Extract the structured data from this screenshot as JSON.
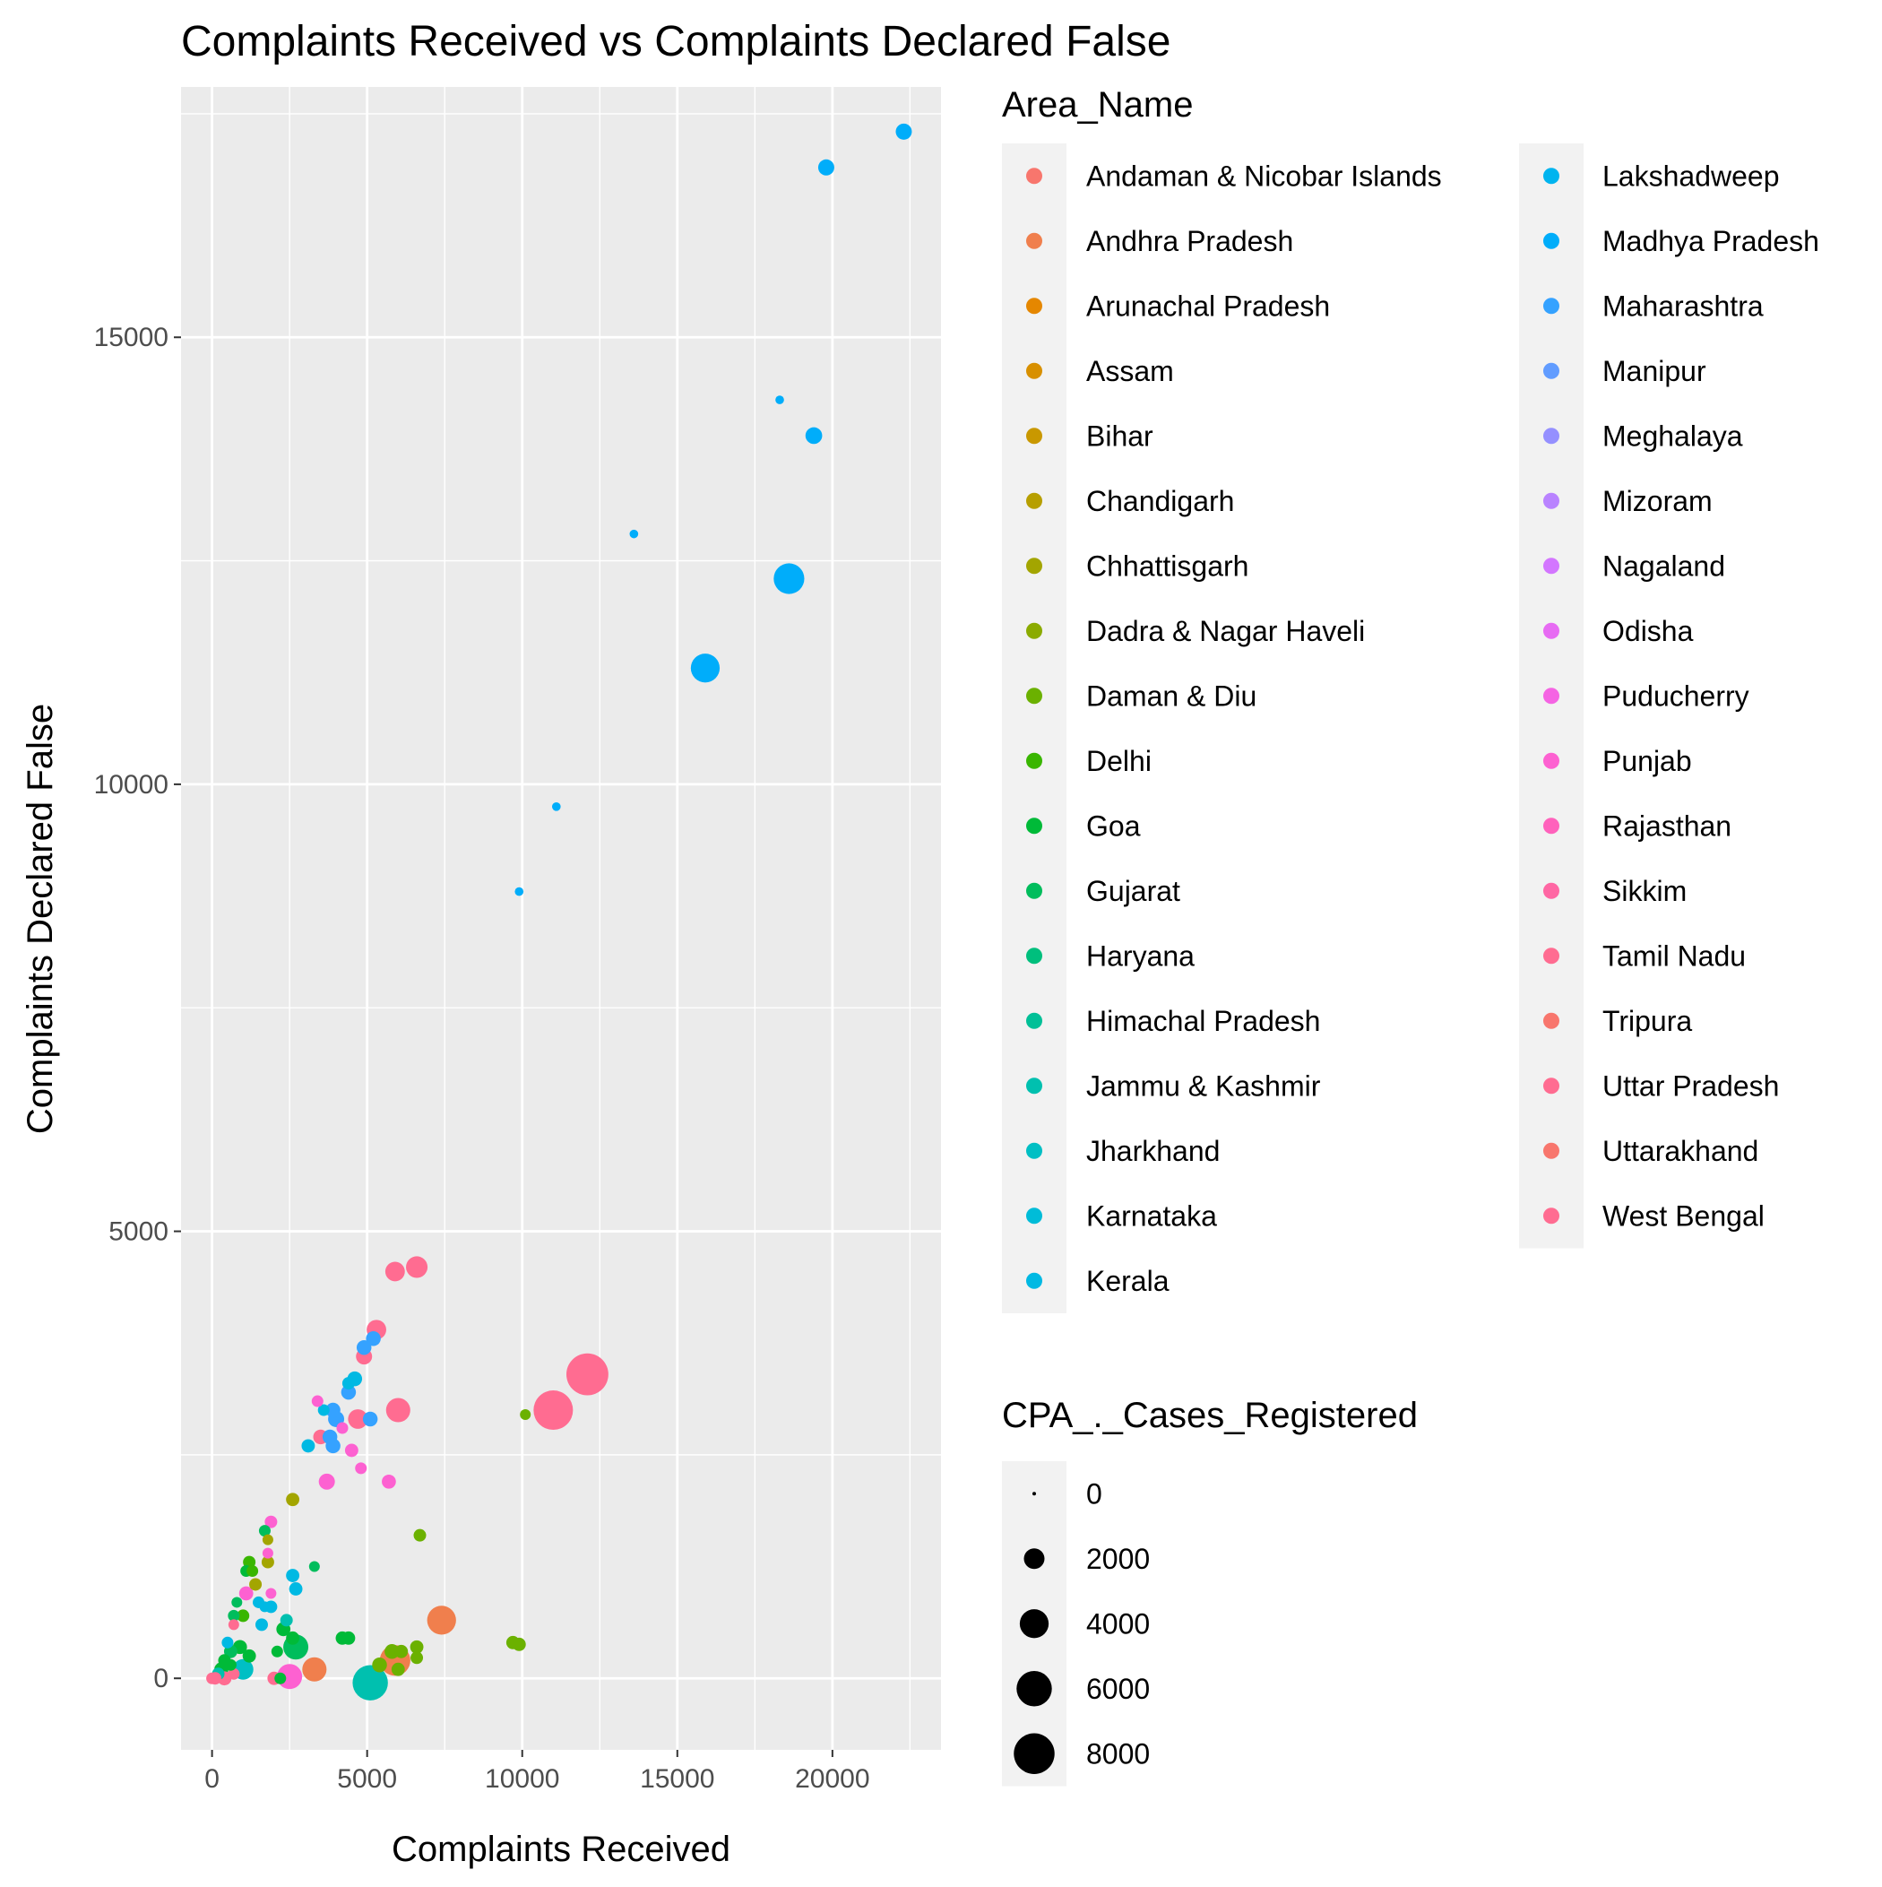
{
  "chart_data": {
    "type": "scatter",
    "title": "Complaints Received vs Complaints Declared False",
    "xlabel": "Complaints Received",
    "ylabel": "Complaints Declared False",
    "xlim": [
      -1000,
      23500
    ],
    "ylim": [
      -800,
      17800
    ],
    "x_ticks": [
      0,
      5000,
      10000,
      15000,
      20000
    ],
    "y_ticks": [
      0,
      5000,
      10000,
      15000
    ],
    "grid": true,
    "legend_position": "right",
    "color_legend_title": "Area_Name",
    "size_legend_title": "CPA_._Cases_Registered",
    "size_legend_values": [
      0,
      2000,
      4000,
      6000,
      8000
    ],
    "areas": [
      {
        "name": "Andaman & Nicobar Islands",
        "color": "#F8766D"
      },
      {
        "name": "Andhra Pradesh",
        "color": "#F07F4D"
      },
      {
        "name": "Arunachal Pradesh",
        "color": "#E58700"
      },
      {
        "name": "Assam",
        "color": "#D89000"
      },
      {
        "name": "Bihar",
        "color": "#C99800"
      },
      {
        "name": "Chandigarh",
        "color": "#B79F00"
      },
      {
        "name": "Chhattisgarh",
        "color": "#A3A500"
      },
      {
        "name": "Dadra & Nagar Haveli",
        "color": "#8BAB00"
      },
      {
        "name": "Daman & Diu",
        "color": "#6BB100"
      },
      {
        "name": "Delhi",
        "color": "#39B600"
      },
      {
        "name": "Goa",
        "color": "#00BA38"
      },
      {
        "name": "Gujarat",
        "color": "#00BD5C"
      },
      {
        "name": "Haryana",
        "color": "#00BF7D"
      },
      {
        "name": "Himachal Pradesh",
        "color": "#00C097"
      },
      {
        "name": "Jammu & Kashmir",
        "color": "#00C0AF"
      },
      {
        "name": "Jharkhand",
        "color": "#00BFC4"
      },
      {
        "name": "Karnataka",
        "color": "#00BCD8"
      },
      {
        "name": "Kerala",
        "color": "#00B9E3"
      },
      {
        "name": "Lakshadweep",
        "color": "#00B4EF"
      },
      {
        "name": "Madhya Pradesh",
        "color": "#00ADFA"
      },
      {
        "name": "Maharashtra",
        "color": "#35A2FF"
      },
      {
        "name": "Manipur",
        "color": "#619CFF"
      },
      {
        "name": "Meghalaya",
        "color": "#9590FF"
      },
      {
        "name": "Mizoram",
        "color": "#B983FF"
      },
      {
        "name": "Nagaland",
        "color": "#D376FF"
      },
      {
        "name": "Odisha",
        "color": "#E76BF3"
      },
      {
        "name": "Puducherry",
        "color": "#F564E3"
      },
      {
        "name": "Punjab",
        "color": "#FD61D1"
      },
      {
        "name": "Rajasthan",
        "color": "#FF62BC"
      },
      {
        "name": "Sikkim",
        "color": "#FF67A4"
      },
      {
        "name": "Tamil Nadu",
        "color": "#FF6C91"
      },
      {
        "name": "Tripura",
        "color": "#F8766D"
      },
      {
        "name": "Uttar Pradesh",
        "color": "#FF6C91"
      },
      {
        "name": "Uttarakhand",
        "color": "#F8766D"
      },
      {
        "name": "West Bengal",
        "color": "#FF6C91"
      }
    ],
    "points": [
      {
        "x": 22300,
        "y": 17300,
        "size": 1200,
        "area": "Madhya Pradesh"
      },
      {
        "x": 19800,
        "y": 16900,
        "size": 1200,
        "area": "Madhya Pradesh"
      },
      {
        "x": 18300,
        "y": 14300,
        "size": 300,
        "area": "Madhya Pradesh"
      },
      {
        "x": 19400,
        "y": 13900,
        "size": 1300,
        "area": "Madhya Pradesh"
      },
      {
        "x": 13600,
        "y": 12800,
        "size": 300,
        "area": "Madhya Pradesh"
      },
      {
        "x": 18600,
        "y": 12300,
        "size": 4500,
        "area": "Madhya Pradesh"
      },
      {
        "x": 15900,
        "y": 11300,
        "size": 4000,
        "area": "Madhya Pradesh"
      },
      {
        "x": 11100,
        "y": 9750,
        "size": 300,
        "area": "Madhya Pradesh"
      },
      {
        "x": 9900,
        "y": 8800,
        "size": 300,
        "area": "Madhya Pradesh"
      },
      {
        "x": 12100,
        "y": 3400,
        "size": 8500,
        "area": "Tamil Nadu"
      },
      {
        "x": 11000,
        "y": 3000,
        "size": 7500,
        "area": "Tamil Nadu"
      },
      {
        "x": 6600,
        "y": 4600,
        "size": 2200,
        "area": "Tamil Nadu"
      },
      {
        "x": 5900,
        "y": 4550,
        "size": 1800,
        "area": "Tamil Nadu"
      },
      {
        "x": 5300,
        "y": 3900,
        "size": 1800,
        "area": "Tamil Nadu"
      },
      {
        "x": 4900,
        "y": 3600,
        "size": 1200,
        "area": "Tamil Nadu"
      },
      {
        "x": 6000,
        "y": 3000,
        "size": 2800,
        "area": "Tamil Nadu"
      },
      {
        "x": 4700,
        "y": 2900,
        "size": 1800,
        "area": "Tamil Nadu"
      },
      {
        "x": 3500,
        "y": 2700,
        "size": 1000,
        "area": "Tamil Nadu"
      },
      {
        "x": 5200,
        "y": 3800,
        "size": 1000,
        "area": "Maharashtra"
      },
      {
        "x": 4900,
        "y": 3700,
        "size": 1000,
        "area": "Maharashtra"
      },
      {
        "x": 4600,
        "y": 3350,
        "size": 1000,
        "area": "Kerala"
      },
      {
        "x": 4400,
        "y": 3300,
        "size": 700,
        "area": "Kerala"
      },
      {
        "x": 4400,
        "y": 3200,
        "size": 1000,
        "area": "Maharashtra"
      },
      {
        "x": 3900,
        "y": 3000,
        "size": 1000,
        "area": "Maharashtra"
      },
      {
        "x": 3600,
        "y": 3000,
        "size": 600,
        "area": "Kerala"
      },
      {
        "x": 4000,
        "y": 2900,
        "size": 1200,
        "area": "Maharashtra"
      },
      {
        "x": 5100,
        "y": 2900,
        "size": 1000,
        "area": "Maharashtra"
      },
      {
        "x": 3800,
        "y": 2700,
        "size": 1000,
        "area": "Maharashtra"
      },
      {
        "x": 3900,
        "y": 2600,
        "size": 1000,
        "area": "Maharashtra"
      },
      {
        "x": 3100,
        "y": 2600,
        "size": 800,
        "area": "Kerala"
      },
      {
        "x": 3400,
        "y": 3100,
        "size": 600,
        "area": "Punjab"
      },
      {
        "x": 4200,
        "y": 2800,
        "size": 600,
        "area": "Punjab"
      },
      {
        "x": 4500,
        "y": 2550,
        "size": 800,
        "area": "Punjab"
      },
      {
        "x": 4800,
        "y": 2350,
        "size": 600,
        "area": "Punjab"
      },
      {
        "x": 3700,
        "y": 2200,
        "size": 1200,
        "area": "Punjab"
      },
      {
        "x": 5700,
        "y": 2200,
        "size": 900,
        "area": "Punjab"
      },
      {
        "x": 10100,
        "y": 2950,
        "size": 500,
        "area": "Daman & Diu"
      },
      {
        "x": 2600,
        "y": 2000,
        "size": 800,
        "area": "Chhattisgarh"
      },
      {
        "x": 6700,
        "y": 1600,
        "size": 700,
        "area": "Daman & Diu"
      },
      {
        "x": 1900,
        "y": 1750,
        "size": 700,
        "area": "Punjab"
      },
      {
        "x": 1700,
        "y": 1650,
        "size": 600,
        "area": "Gujarat"
      },
      {
        "x": 1800,
        "y": 1550,
        "size": 500,
        "area": "Chhattisgarh"
      },
      {
        "x": 1800,
        "y": 1400,
        "size": 500,
        "area": "Punjab"
      },
      {
        "x": 1200,
        "y": 1300,
        "size": 700,
        "area": "Delhi"
      },
      {
        "x": 1800,
        "y": 1300,
        "size": 700,
        "area": "Chhattisgarh"
      },
      {
        "x": 1100,
        "y": 1200,
        "size": 600,
        "area": "Goa"
      },
      {
        "x": 1300,
        "y": 1200,
        "size": 600,
        "area": "Delhi"
      },
      {
        "x": 3300,
        "y": 1250,
        "size": 500,
        "area": "Gujarat"
      },
      {
        "x": 2600,
        "y": 1150,
        "size": 800,
        "area": "Kerala"
      },
      {
        "x": 1400,
        "y": 1050,
        "size": 700,
        "area": "Chhattisgarh"
      },
      {
        "x": 2700,
        "y": 1000,
        "size": 800,
        "area": "Kerala"
      },
      {
        "x": 1100,
        "y": 950,
        "size": 900,
        "area": "Punjab"
      },
      {
        "x": 800,
        "y": 850,
        "size": 500,
        "area": "Gujarat"
      },
      {
        "x": 1900,
        "y": 950,
        "size": 500,
        "area": "Punjab"
      },
      {
        "x": 1500,
        "y": 850,
        "size": 600,
        "area": "Kerala"
      },
      {
        "x": 1900,
        "y": 800,
        "size": 700,
        "area": "Kerala"
      },
      {
        "x": 1700,
        "y": 800,
        "size": 500,
        "area": "Kerala"
      },
      {
        "x": 700,
        "y": 700,
        "size": 600,
        "area": "Gujarat"
      },
      {
        "x": 1000,
        "y": 700,
        "size": 700,
        "area": "Delhi"
      },
      {
        "x": 2400,
        "y": 650,
        "size": 700,
        "area": "Jammu & Kashmir"
      },
      {
        "x": 1600,
        "y": 600,
        "size": 700,
        "area": "Kerala"
      },
      {
        "x": 700,
        "y": 600,
        "size": 500,
        "area": "Tamil Nadu"
      },
      {
        "x": 2300,
        "y": 550,
        "size": 900,
        "area": "Goa"
      },
      {
        "x": 7400,
        "y": 650,
        "size": 4000,
        "area": "Andhra Pradesh"
      },
      {
        "x": 4200,
        "y": 450,
        "size": 800,
        "area": "Goa"
      },
      {
        "x": 4400,
        "y": 450,
        "size": 800,
        "area": "Goa"
      },
      {
        "x": 2600,
        "y": 450,
        "size": 800,
        "area": "Goa"
      },
      {
        "x": 2700,
        "y": 350,
        "size": 3000,
        "area": "Gujarat"
      },
      {
        "x": 2100,
        "y": 300,
        "size": 600,
        "area": "Goa"
      },
      {
        "x": 9700,
        "y": 400,
        "size": 800,
        "area": "Daman & Diu"
      },
      {
        "x": 9900,
        "y": 380,
        "size": 800,
        "area": "Daman & Diu"
      },
      {
        "x": 6600,
        "y": 350,
        "size": 800,
        "area": "Daman & Diu"
      },
      {
        "x": 6600,
        "y": 230,
        "size": 700,
        "area": "Daman & Diu"
      },
      {
        "x": 6100,
        "y": 300,
        "size": 800,
        "area": "Daman & Diu"
      },
      {
        "x": 5800,
        "y": 300,
        "size": 1000,
        "area": "Daman & Diu"
      },
      {
        "x": 5400,
        "y": 150,
        "size": 1000,
        "area": "Daman & Diu"
      },
      {
        "x": 5900,
        "y": 200,
        "size": 4500,
        "area": "Andhra Pradesh"
      },
      {
        "x": 6000,
        "y": 100,
        "size": 800,
        "area": "Daman & Diu"
      },
      {
        "x": 5100,
        "y": -50,
        "size": 6000,
        "area": "Jammu & Kashmir"
      },
      {
        "x": 3300,
        "y": 100,
        "size": 2800,
        "area": "Andhra Pradesh"
      },
      {
        "x": 2500,
        "y": 20,
        "size": 3000,
        "area": "Punjab"
      },
      {
        "x": 2000,
        "y": 0,
        "size": 800,
        "area": "Tamil Nadu"
      },
      {
        "x": 2200,
        "y": 0,
        "size": 600,
        "area": "Goa"
      },
      {
        "x": 1000,
        "y": 100,
        "size": 2000,
        "area": "Jharkhand"
      },
      {
        "x": 900,
        "y": 350,
        "size": 900,
        "area": "Goa"
      },
      {
        "x": 1200,
        "y": 250,
        "size": 800,
        "area": "Goa"
      },
      {
        "x": 600,
        "y": 300,
        "size": 800,
        "area": "Gujarat"
      },
      {
        "x": 400,
        "y": 200,
        "size": 700,
        "area": "Goa"
      },
      {
        "x": 500,
        "y": 400,
        "size": 600,
        "area": "Kerala"
      },
      {
        "x": 300,
        "y": 100,
        "size": 900,
        "area": "Goa"
      },
      {
        "x": 200,
        "y": 50,
        "size": 700,
        "area": "Jammu & Kashmir"
      },
      {
        "x": 400,
        "y": 0,
        "size": 900,
        "area": "Tamil Nadu"
      },
      {
        "x": 100,
        "y": 0,
        "size": 700,
        "area": "Tamil Nadu"
      },
      {
        "x": 0,
        "y": 0,
        "size": 600,
        "area": "Tamil Nadu"
      },
      {
        "x": 700,
        "y": 50,
        "size": 600,
        "area": "Tamil Nadu"
      },
      {
        "x": 600,
        "y": 150,
        "size": 600,
        "area": "Goa"
      }
    ]
  }
}
